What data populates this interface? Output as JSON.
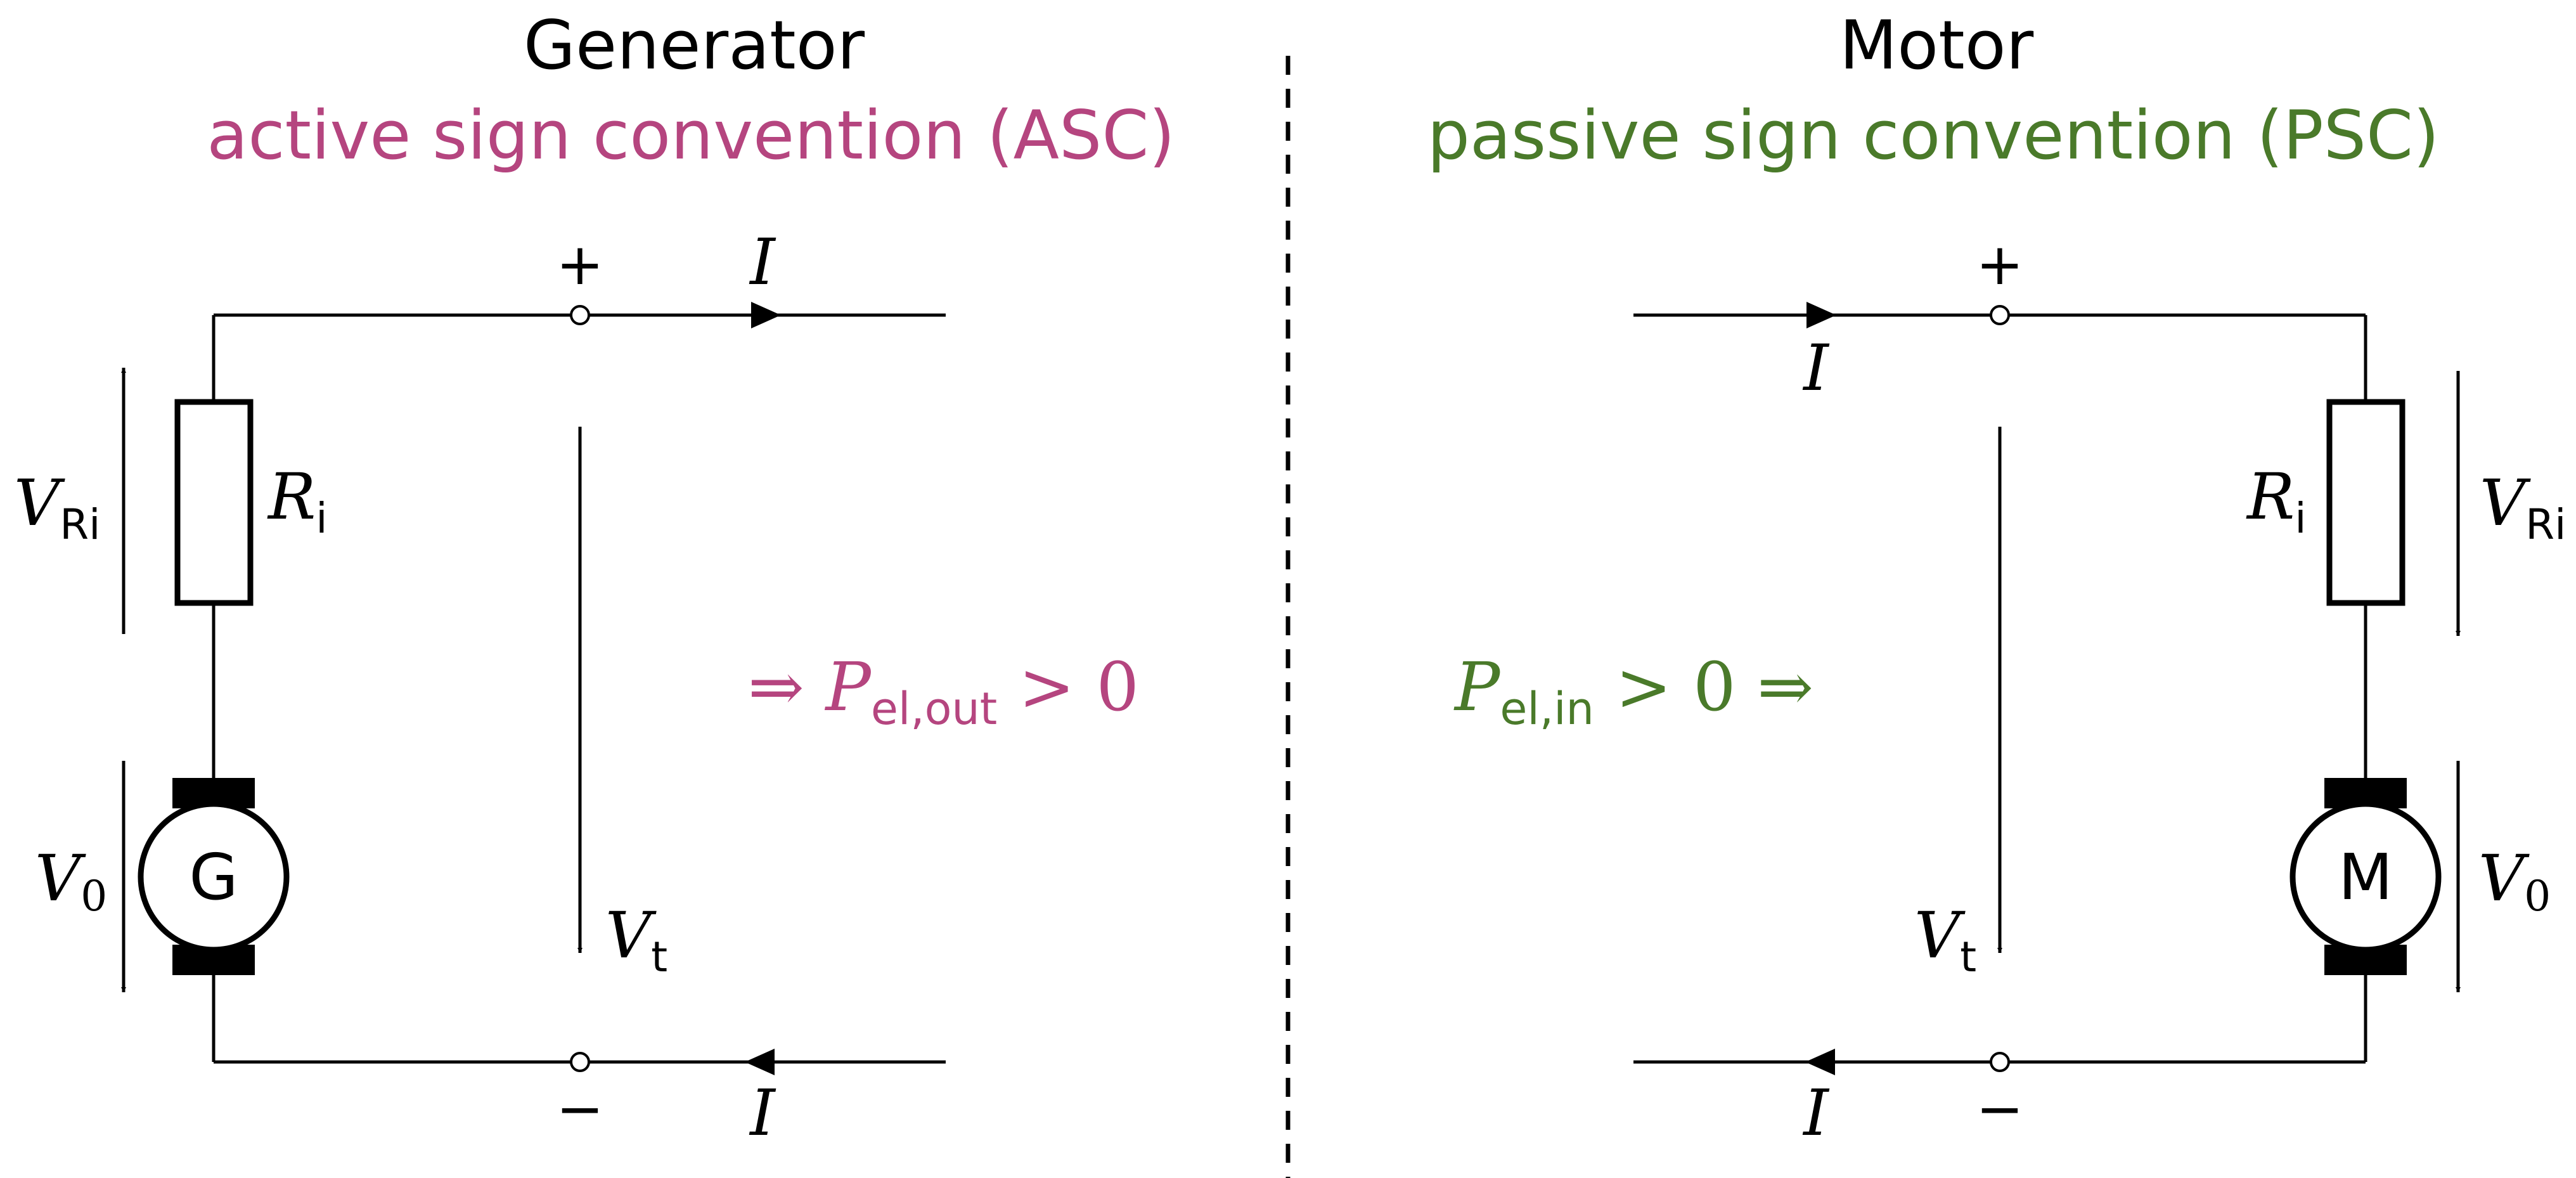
{
  "colors": {
    "asc": "#b5457f",
    "psc": "#4a7a2a",
    "ink": "#000000"
  },
  "generator": {
    "title": "Generator",
    "convention": "active sign convention (ASC)",
    "machine_letter": "G",
    "plus": "+",
    "minus": "−",
    "current": "I",
    "resistor": {
      "main": "R",
      "sub": "i"
    },
    "v_resistor": {
      "main": "V",
      "sub": "Ri"
    },
    "v_source": {
      "main": "V",
      "sub": "0"
    },
    "v_terminal": {
      "main": "V",
      "sub": "t"
    },
    "power": {
      "prefix": "⇒ ",
      "main": "P",
      "sub": "el,out",
      "rest": " > 0",
      "suffix": ""
    }
  },
  "motor": {
    "title": "Motor",
    "convention": "passive sign convention (PSC)",
    "machine_letter": "M",
    "plus": "+",
    "minus": "−",
    "current": "I",
    "resistor": {
      "main": "R",
      "sub": "i"
    },
    "v_resistor": {
      "main": "V",
      "sub": "Ri"
    },
    "v_source": {
      "main": "V",
      "sub": "0"
    },
    "v_terminal": {
      "main": "V",
      "sub": "t"
    },
    "power": {
      "prefix": "",
      "main": "P",
      "sub": "el,in",
      "rest": " > 0",
      "suffix": " ⇒"
    }
  }
}
